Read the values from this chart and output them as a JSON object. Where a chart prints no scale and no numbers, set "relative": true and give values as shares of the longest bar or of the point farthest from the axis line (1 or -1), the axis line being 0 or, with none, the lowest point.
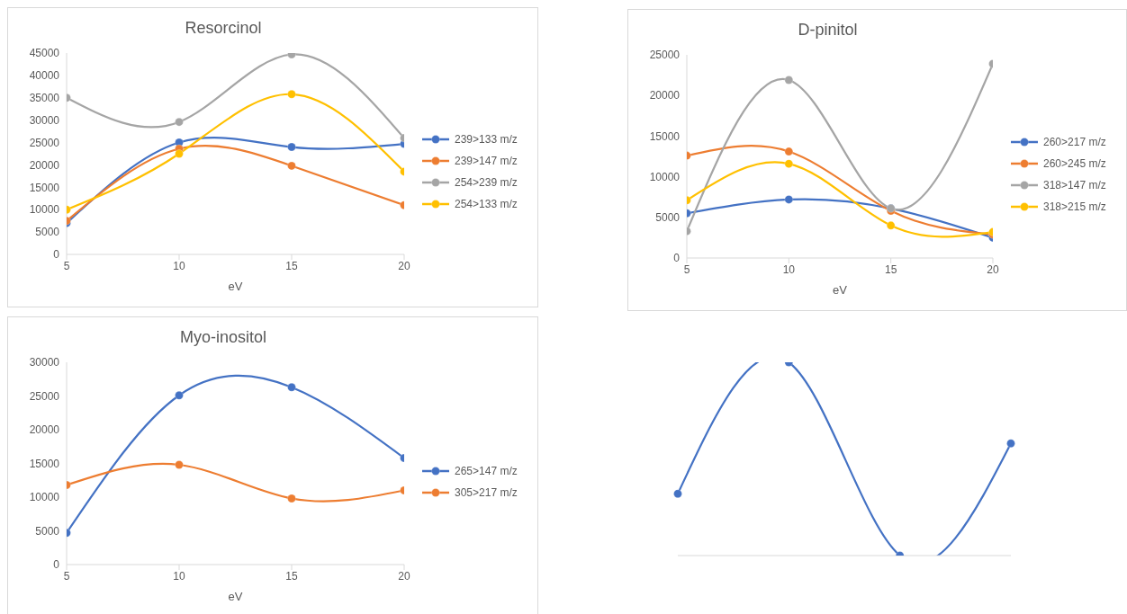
{
  "chart_data": [
    {
      "type": "line",
      "title": "Resorcinol",
      "xlabel": "eV",
      "x": [
        5,
        10,
        15,
        20
      ],
      "xlim": [
        5,
        20
      ],
      "xticks": [
        5,
        10,
        15,
        20
      ],
      "ylim": [
        0,
        45000
      ],
      "yticks": [
        0,
        5000,
        10000,
        15000,
        20000,
        25000,
        30000,
        35000,
        40000,
        45000
      ],
      "marker": "circle",
      "legend": "right",
      "series": [
        {
          "name": "239>133 m/z",
          "color": "#4472c4",
          "values": [
            7000,
            25000,
            24000,
            24700
          ]
        },
        {
          "name": "239>147 m/z",
          "color": "#ed7d31",
          "values": [
            7500,
            23600,
            19800,
            11000
          ]
        },
        {
          "name": "254>239 m/z",
          "color": "#a5a5a5",
          "values": [
            35000,
            29600,
            44700,
            26000
          ]
        },
        {
          "name": "254>133 m/z",
          "color": "#ffc000",
          "values": [
            10000,
            22500,
            35800,
            18500
          ]
        }
      ]
    },
    {
      "type": "line",
      "title": "D-pinitol",
      "xlabel": "eV",
      "x": [
        5,
        10,
        15,
        20
      ],
      "xlim": [
        5,
        20
      ],
      "xticks": [
        5,
        10,
        15,
        20
      ],
      "ylim": [
        0,
        25000
      ],
      "yticks": [
        0,
        5000,
        10000,
        15000,
        20000,
        25000
      ],
      "marker": "circle",
      "legend": "right",
      "series": [
        {
          "name": "260>217 m/z",
          "color": "#4472c4",
          "values": [
            5500,
            7200,
            6100,
            2500
          ]
        },
        {
          "name": "260>245 m/z",
          "color": "#ed7d31",
          "values": [
            12600,
            13100,
            5800,
            2900
          ]
        },
        {
          "name": "318>147 m/z",
          "color": "#a5a5a5",
          "values": [
            3300,
            21900,
            6100,
            23900
          ]
        },
        {
          "name": "318>215 m/z",
          "color": "#ffc000",
          "values": [
            7100,
            11600,
            4000,
            3200
          ]
        }
      ]
    },
    {
      "type": "line",
      "title": "Myo-inositol",
      "xlabel": "eV",
      "x": [
        5,
        10,
        15,
        20
      ],
      "xlim": [
        5,
        20
      ],
      "xticks": [
        5,
        10,
        15,
        20
      ],
      "ylim": [
        0,
        30000
      ],
      "yticks": [
        0,
        5000,
        10000,
        15000,
        20000,
        25000,
        30000
      ],
      "marker": "circle",
      "legend": "right",
      "series": [
        {
          "name": "265>147 m/z",
          "color": "#4472c4",
          "values": [
            4700,
            25100,
            26300,
            15800
          ]
        },
        {
          "name": "305>217 m/z",
          "color": "#ed7d31",
          "values": [
            11800,
            14800,
            9800,
            11000
          ]
        }
      ]
    },
    {
      "type": "line",
      "relative": true,
      "tick_labels": false,
      "categories": [
        null,
        null,
        null,
        null
      ],
      "marker": "circle",
      "series": [
        {
          "color": "#4472c4",
          "values": [
            0.32,
            1,
            0,
            0.58
          ]
        }
      ]
    }
  ]
}
